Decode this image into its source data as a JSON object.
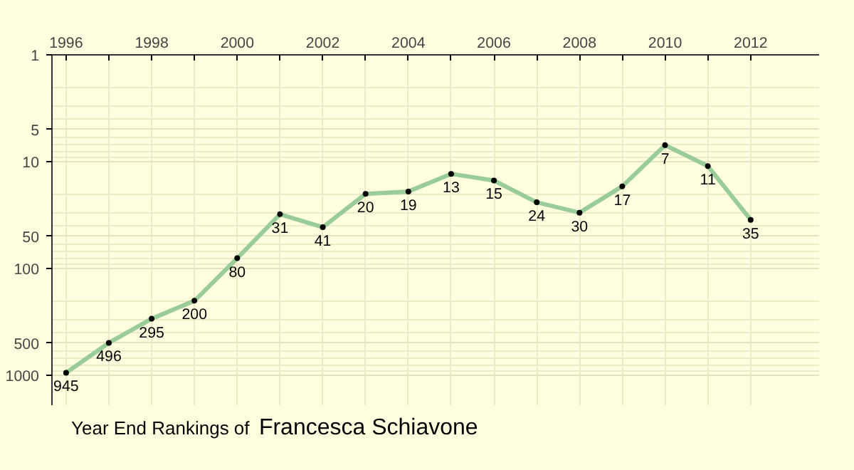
{
  "chart_data": {
    "type": "line",
    "title": "Year End Rankings of",
    "subtitle": "Francesca Schiavone",
    "x": [
      1996,
      1997,
      1998,
      1999,
      2000,
      2001,
      2002,
      2003,
      2004,
      2005,
      2006,
      2007,
      2008,
      2009,
      2010,
      2011,
      2012
    ],
    "series": [
      {
        "color": "#99cc99",
        "values": [
          945,
          496,
          295,
          200,
          80,
          31,
          41,
          20,
          19,
          13,
          15,
          24,
          30,
          17,
          7,
          11,
          35
        ]
      }
    ],
    "xlim": [
      1995.67,
      2013.6
    ],
    "xticks": [
      1996,
      {
        "value": 1997,
        "label": null
      },
      1998,
      {
        "value": 1999,
        "label": null
      },
      2000,
      {
        "value": 2001,
        "label": null
      },
      2002,
      {
        "value": 2003,
        "label": null
      },
      2004,
      {
        "value": 2005,
        "label": null
      },
      2006,
      {
        "value": 2007,
        "label": null
      },
      2008,
      {
        "value": 2009,
        "label": null
      },
      2010,
      {
        "value": 2011,
        "label": null
      },
      2012
    ],
    "ylim": [
      1900,
      1
    ],
    "yticks": [
      1,
      5,
      10,
      50,
      100,
      500,
      1000
    ],
    "log": "y",
    "grid": true,
    "marker": "circle",
    "line_style": "solid",
    "data_labels": true
  }
}
